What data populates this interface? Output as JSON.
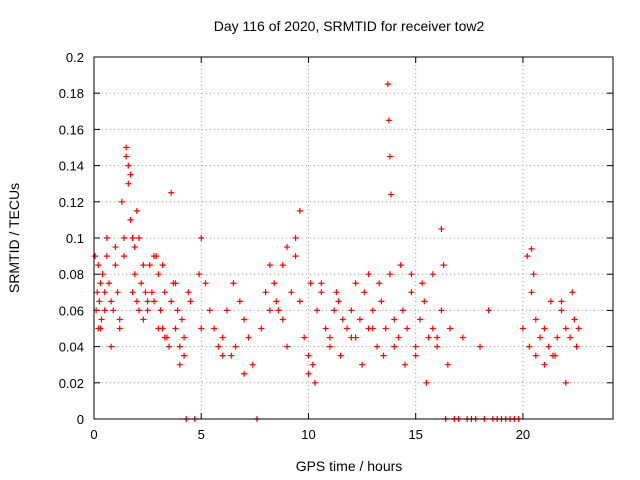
{
  "chart_data": {
    "type": "scatter",
    "title": "Day 116 of 2020, SRMTID for receiver tow2",
    "xlabel": "GPS time / hours",
    "ylabel": "SRMTID / TECUs",
    "xlim": [
      0,
      24.2
    ],
    "ylim": [
      0,
      0.2
    ],
    "xticks": [
      0,
      5,
      10,
      15,
      20
    ],
    "xtick_labels": [
      "0",
      "5",
      "10",
      "15",
      "20"
    ],
    "yticks": [
      0,
      0.02,
      0.04,
      0.06,
      0.08,
      0.1,
      0.12,
      0.14,
      0.16,
      0.18,
      0.2
    ],
    "ytick_labels": [
      "0",
      "0.02",
      "0.04",
      "0.06",
      "0.08",
      "0.1",
      "0.12",
      "0.14",
      "0.16",
      "0.18",
      "0.2"
    ],
    "grid": true,
    "marker": "+",
    "color": "#ff0000",
    "series": [
      {
        "name": "SRMTID",
        "x": [
          0.05,
          0.1,
          0.15,
          0.2,
          0.25,
          0.3,
          0.35,
          0.4,
          0.5,
          0.6,
          0.7,
          0.8,
          0.9,
          1.0,
          1.1,
          1.2,
          1.3,
          1.4,
          1.5,
          1.6,
          1.7,
          1.8,
          1.9,
          2.0,
          2.1,
          2.2,
          2.3,
          2.4,
          2.5,
          2.6,
          2.7,
          2.8,
          2.9,
          3.0,
          3.1,
          3.2,
          3.3,
          3.4,
          3.5,
          3.6,
          3.7,
          3.8,
          3.9,
          4.0,
          4.1,
          4.2,
          4.3,
          4.5,
          4.7,
          4.9,
          5.0,
          5.2,
          5.4,
          5.6,
          5.8,
          6.0,
          6.2,
          6.4,
          6.6,
          6.8,
          7.0,
          7.2,
          7.4,
          7.6,
          7.8,
          8.0,
          8.2,
          8.4,
          8.6,
          8.8,
          9.0,
          9.2,
          9.4,
          9.6,
          9.8,
          10.0,
          10.2,
          10.4,
          10.6,
          10.8,
          11.0,
          11.2,
          11.4,
          11.6,
          11.8,
          12.0,
          12.2,
          12.4,
          12.6,
          12.8,
          13.0,
          13.2,
          13.4,
          13.6,
          13.8,
          14.0,
          14.2,
          14.4,
          14.6,
          14.8,
          15.0,
          15.2,
          15.4,
          15.6,
          15.8,
          16.0,
          16.2,
          16.4,
          16.6,
          16.8,
          17.0,
          17.2,
          17.4,
          17.6,
          17.8,
          18.0,
          18.2,
          18.4,
          18.6,
          18.8,
          19.0,
          19.2,
          19.4,
          19.6,
          19.8,
          20.0,
          20.2,
          20.4,
          20.6,
          20.8,
          21.0,
          21.2,
          21.4,
          21.6,
          21.8,
          22.0,
          22.2,
          22.4,
          22.6,
          1.5,
          1.6,
          1.7,
          2.0,
          2.1,
          3.6,
          13.7,
          13.75,
          13.8,
          13.85,
          9.4,
          9.6,
          16.2,
          20.4,
          0.3,
          0.5,
          0.8,
          1.2,
          1.8,
          2.5,
          3.0,
          3.3,
          4.0,
          4.2,
          5.0,
          6.0,
          7.0,
          8.2,
          8.5,
          9.0,
          10.0,
          10.3,
          11.0,
          11.5,
          12.0,
          12.5,
          13.0,
          13.5,
          14.0,
          14.5,
          15.0,
          15.5,
          16.0,
          16.5,
          20.3,
          20.6,
          21.0,
          21.5,
          22.0,
          22.5,
          0.2,
          0.6,
          1.0,
          1.4,
          1.9,
          2.3,
          2.8,
          3.2,
          3.8,
          4.4,
          6.5,
          8.8,
          10.1,
          10.6,
          11.3,
          12.2,
          12.8,
          13.3,
          14.3,
          14.8,
          15.3,
          15.8,
          16.3,
          20.5,
          21.3,
          21.8,
          22.3
        ],
        "y": [
          0.09,
          0.06,
          0.07,
          0.05,
          0.065,
          0.075,
          0.055,
          0.08,
          0.07,
          0.1,
          0.075,
          0.065,
          0.06,
          0.085,
          0.07,
          0.05,
          0.12,
          0.09,
          0.145,
          0.13,
          0.11,
          0.1,
          0.08,
          0.065,
          0.06,
          0.075,
          0.055,
          0.07,
          0.06,
          0.085,
          0.07,
          0.065,
          0.09,
          0.08,
          0.06,
          0.05,
          0.07,
          0.045,
          0.04,
          0.065,
          0.075,
          0.05,
          0.06,
          0.04,
          0.055,
          0.035,
          0.0,
          0.065,
          0.0,
          0.08,
          0.1,
          0.075,
          0.06,
          0.05,
          0.04,
          0.045,
          0.06,
          0.035,
          0.04,
          0.065,
          0.055,
          0.045,
          0.03,
          0.0,
          0.05,
          0.07,
          0.085,
          0.075,
          0.06,
          0.055,
          0.095,
          0.07,
          0.09,
          0.065,
          0.045,
          0.035,
          0.03,
          0.06,
          0.07,
          0.05,
          0.045,
          0.06,
          0.065,
          0.055,
          0.05,
          0.06,
          0.045,
          0.055,
          0.07,
          0.05,
          0.06,
          0.04,
          0.065,
          0.05,
          0.08,
          0.055,
          0.045,
          0.06,
          0.05,
          0.07,
          0.04,
          0.055,
          0.065,
          0.045,
          0.05,
          0.04,
          0.06,
          0.0,
          0.05,
          0.0,
          0.0,
          0.045,
          0.0,
          0.0,
          0.0,
          0.04,
          0.0,
          0.06,
          0.0,
          0.0,
          0.0,
          0.0,
          0.0,
          0.0,
          0.0,
          0.05,
          0.09,
          0.07,
          0.055,
          0.045,
          0.05,
          0.04,
          0.035,
          0.045,
          0.06,
          0.05,
          0.045,
          0.055,
          0.05,
          0.15,
          0.14,
          0.135,
          0.115,
          0.1,
          0.125,
          0.185,
          0.165,
          0.145,
          0.124,
          0.1,
          0.115,
          0.105,
          0.094,
          0.05,
          0.06,
          0.04,
          0.055,
          0.07,
          0.065,
          0.05,
          0.045,
          0.03,
          0.045,
          0.05,
          0.035,
          0.025,
          0.06,
          0.065,
          0.04,
          0.025,
          0.02,
          0.04,
          0.035,
          0.045,
          0.03,
          0.05,
          0.035,
          0.04,
          0.03,
          0.035,
          0.02,
          0.045,
          0.03,
          0.04,
          0.035,
          0.03,
          0.035,
          0.02,
          0.04,
          0.085,
          0.09,
          0.095,
          0.1,
          0.095,
          0.085,
          0.09,
          0.085,
          0.075,
          0.07,
          0.075,
          0.085,
          0.075,
          0.075,
          0.07,
          0.075,
          0.08,
          0.075,
          0.085,
          0.08,
          0.075,
          0.08,
          0.085,
          0.08,
          0.065,
          0.065,
          0.07
        ]
      }
    ]
  }
}
